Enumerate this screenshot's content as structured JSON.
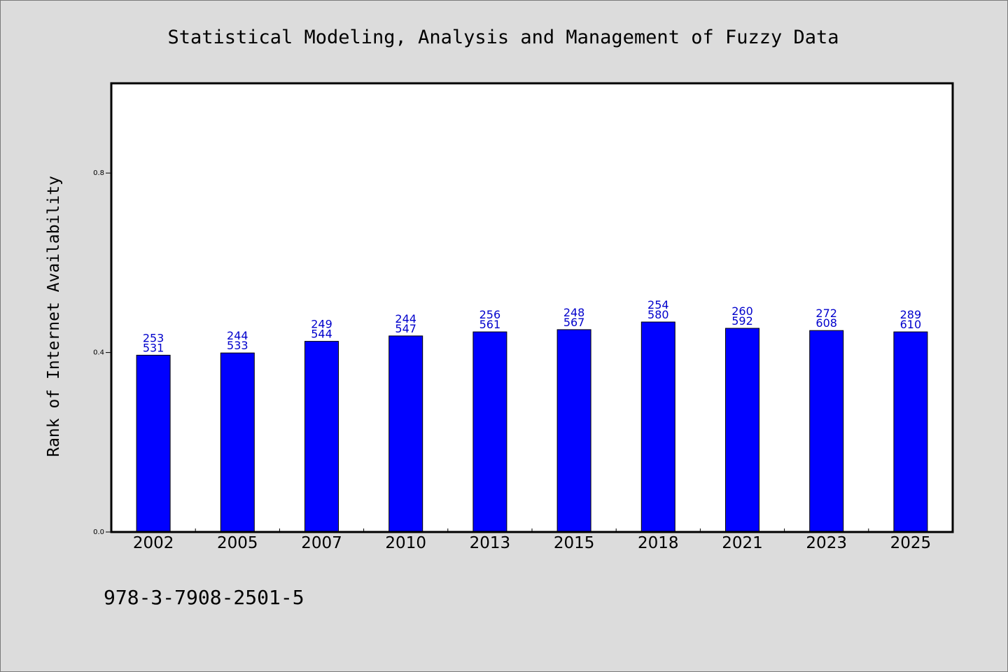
{
  "colors": {
    "background": "#dcdcdc",
    "plot_background": "#ffffff",
    "bar_fill": "#0000ff",
    "bar_stroke": "#000000",
    "data_label": "#0000cc",
    "axis": "#000000"
  },
  "footnote": "978-3-7908-2501-5",
  "chart_data": {
    "type": "bar",
    "title": "Statistical Modeling, Analysis and Management of Fuzzy Data",
    "xlabel": "",
    "ylabel": "Rank of Internet Availability",
    "ylim": [
      0.0,
      1.0
    ],
    "yticks": [
      0.0,
      0.4,
      0.8
    ],
    "ytick_labels": [
      "0.0",
      "0.4",
      "0.8"
    ],
    "grid": false,
    "legend": "none",
    "categories": [
      "2002",
      "2005",
      "2007",
      "2010",
      "2013",
      "2015",
      "2018",
      "2021",
      "2023",
      "2025"
    ],
    "values": [
      0.394,
      0.399,
      0.425,
      0.437,
      0.446,
      0.451,
      0.468,
      0.454,
      0.449,
      0.446
    ],
    "labels_top": [
      "253",
      "244",
      "249",
      "244",
      "256",
      "248",
      "254",
      "260",
      "272",
      "289"
    ],
    "labels_bottom": [
      "531",
      "533",
      "544",
      "547",
      "561",
      "567",
      "580",
      "592",
      "608",
      "610"
    ]
  }
}
